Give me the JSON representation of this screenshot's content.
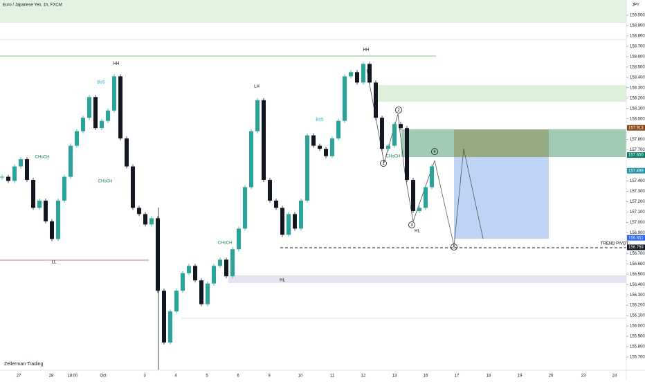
{
  "chart_data": {
    "type": "candlestick",
    "title": "Euro / Japanese Yen, 1h, FXCM",
    "watermark": "Zellerman Trading",
    "currency": "JPY",
    "closes": [
      157.44,
      157.4,
      157.54,
      157.61,
      157.41,
      157.14,
      157.21,
      157.01,
      156.84,
      157.21,
      157.44,
      157.74,
      157.88,
      158.01,
      158.21,
      157.91,
      157.98,
      158.08,
      158.41,
      157.81,
      157.54,
      157.14,
      157.08,
      156.98,
      157.04,
      156.34,
      155.84,
      156.14,
      156.34,
      156.51,
      156.58,
      156.44,
      156.21,
      156.41,
      156.58,
      156.64,
      156.48,
      156.74,
      156.94,
      157.34,
      157.88,
      158.18,
      157.41,
      157.21,
      157.14,
      156.88,
      157.08,
      156.94,
      157.21,
      157.84,
      157.74,
      157.71,
      157.64,
      157.81,
      157.98,
      158.41,
      158.45,
      158.35,
      158.53,
      158.35,
      158.01,
      157.71,
      157.74,
      157.95,
      157.91,
      157.41,
      157.11,
      157.14,
      157.34,
      157.54
    ],
    "up_color": "#26a69a",
    "down_color": "#131722",
    "categories": [
      "27",
      "28",
      "18:00",
      "Oct",
      "3",
      "4",
      "5",
      "6",
      "9",
      "10",
      "11",
      "12",
      "13",
      "16",
      "17",
      "18",
      "19",
      "20",
      "23",
      "24"
    ],
    "ylim": [
      155.7,
      159.0
    ],
    "yticks": [
      {
        "value": 159.0,
        "label": "159.000"
      },
      {
        "value": 158.9,
        "label": "158.900"
      },
      {
        "value": 158.8,
        "label": "158.800"
      },
      {
        "value": 158.7,
        "label": "158.700"
      },
      {
        "value": 158.6,
        "label": "158.600"
      },
      {
        "value": 158.5,
        "label": "158.500"
      },
      {
        "value": 158.4,
        "label": "158.400"
      },
      {
        "value": 158.3,
        "label": "158.300"
      },
      {
        "value": 158.2,
        "label": "158.200"
      },
      {
        "value": 158.1,
        "label": "158.100"
      },
      {
        "value": 158.0,
        "label": "158.000"
      },
      {
        "value": 157.9,
        "label": "157.900"
      },
      {
        "value": 157.8,
        "label": "157.800"
      },
      {
        "value": 157.7,
        "label": "157.700"
      },
      {
        "value": 157.5,
        "label": "157.500"
      },
      {
        "value": 157.4,
        "label": "157.400"
      },
      {
        "value": 157.3,
        "label": "157.300"
      },
      {
        "value": 157.2,
        "label": "157.200"
      },
      {
        "value": 157.1,
        "label": "157.100"
      },
      {
        "value": 157.0,
        "label": "157.000"
      },
      {
        "value": 156.9,
        "label": "156.900"
      },
      {
        "value": 156.7,
        "label": "156.700"
      },
      {
        "value": 156.6,
        "label": "156.600"
      },
      {
        "value": 156.5,
        "label": "156.500"
      },
      {
        "value": 156.4,
        "label": "156.400"
      },
      {
        "value": 156.3,
        "label": "156.300"
      },
      {
        "value": 156.2,
        "label": "156.200"
      },
      {
        "value": 156.1,
        "label": "156.100"
      },
      {
        "value": 156.0,
        "label": "156.000"
      },
      {
        "value": 155.9,
        "label": "155.900"
      },
      {
        "value": 155.8,
        "label": "155.800"
      },
      {
        "value": 155.7,
        "label": "155.700"
      }
    ],
    "price_tags": [
      {
        "value": 157.913,
        "label": "157.913",
        "color": "#8b4513"
      },
      {
        "value": 157.65,
        "label": "157.650",
        "color": "#0d7c6b"
      },
      {
        "value": 157.499,
        "label": "157.499",
        "color": "#2196a8"
      },
      {
        "value": 156.851,
        "label": "156.851",
        "color": "#2962ff"
      },
      {
        "value": 156.759,
        "label": "156.759",
        "color": "#131722"
      }
    ],
    "annotations": [
      "HH",
      "LL",
      "LH",
      "HH",
      "HL",
      "HL",
      "BoS",
      "BoS",
      "CHoCH",
      "CHoCH",
      "CHoCH",
      "CHoCH",
      "TREND PIVOT",
      "1",
      "2",
      "3",
      "4",
      "5"
    ]
  }
}
